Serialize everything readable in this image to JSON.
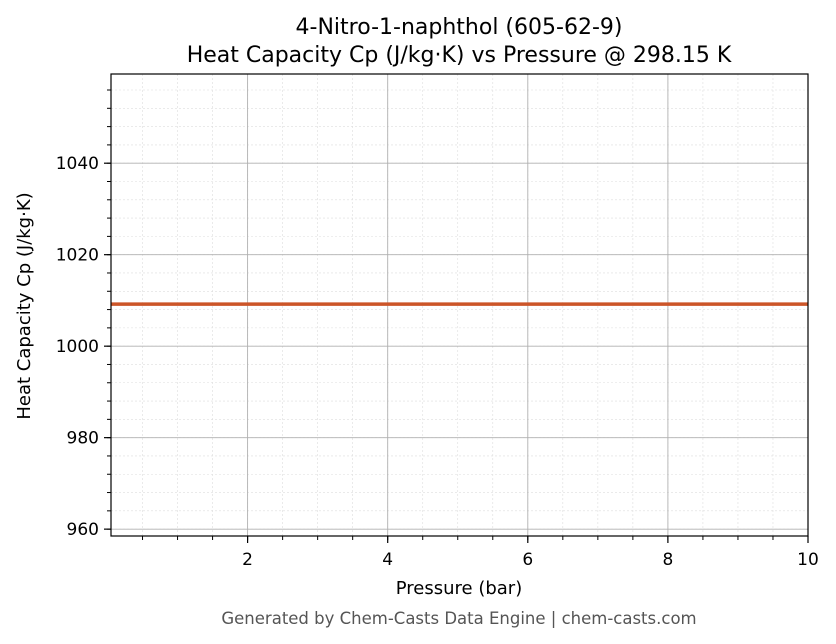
{
  "chart_data": {
    "type": "line",
    "title": [
      "4-Nitro-1-naphthol (605-62-9)",
      "Heat Capacity Cp (J/kg·K) vs Pressure @ 298.15 K"
    ],
    "xlabel": "Pressure (bar)",
    "ylabel": "Heat Capacity Cp (J/kg·K)",
    "xlim": [
      0.05,
      10
    ],
    "ylim": [
      958.5,
      1059.5
    ],
    "x_ticks": [
      2,
      4,
      6,
      8,
      10
    ],
    "x_tick_labels": [
      "2",
      "4",
      "6",
      "8",
      "10"
    ],
    "x_minor_step": 0.5,
    "y_ticks": [
      960,
      980,
      1000,
      1020,
      1040
    ],
    "y_tick_labels": [
      "960",
      "980",
      "1000",
      "1020",
      "1040"
    ],
    "y_minor_step": 4,
    "grid": true,
    "series": [
      {
        "color": "#cc5528",
        "x": [
          0.05,
          1,
          2,
          3,
          4,
          5,
          6,
          7,
          8,
          9,
          10
        ],
        "values": [
          1009.2,
          1009.2,
          1009.2,
          1009.2,
          1009.2,
          1009.2,
          1009.2,
          1009.2,
          1009.2,
          1009.2,
          1009.2
        ]
      }
    ]
  },
  "footer": "Generated by Chem-Casts Data Engine | chem-casts.com"
}
